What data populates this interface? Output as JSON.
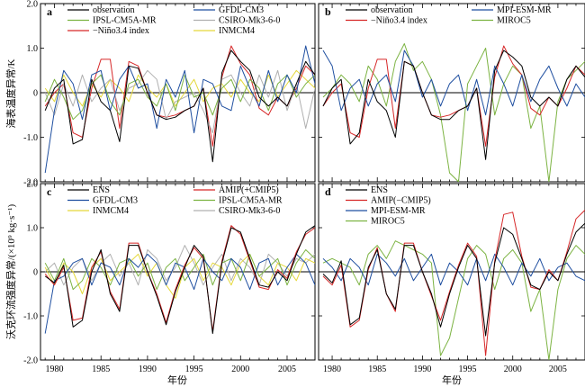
{
  "figure": {
    "ylabel_top": "海表温度异常/K",
    "ylabel_bottom": "沃克环流强度异常/(×10⁹ kg·s⁻¹)",
    "xlabel": "年份"
  },
  "chart_data": [
    {
      "type": "line",
      "panel_label": "a",
      "xlim": [
        1978.5,
        2008
      ],
      "ylim": [
        -2.0,
        2.0
      ],
      "xticks": [
        1980,
        1985,
        1990,
        1995,
        2000,
        2005
      ],
      "yticks": [
        "2.0",
        "1.0",
        "0",
        "-1.0",
        "-2.0"
      ],
      "zero_line": true,
      "legend_columns": 2,
      "x": [
        1979,
        1980,
        1981,
        1982,
        1983,
        1984,
        1985,
        1986,
        1987,
        1988,
        1989,
        1990,
        1991,
        1992,
        1993,
        1994,
        1995,
        1996,
        1997,
        1998,
        1999,
        2000,
        2001,
        2002,
        2003,
        2004,
        2005,
        2006,
        2007,
        2008
      ],
      "series": [
        {
          "name": "observation",
          "color": "#000000",
          "values": [
            -0.4,
            0.1,
            0.3,
            -1.15,
            -1.05,
            0.3,
            -0.2,
            -0.4,
            -1.1,
            0.6,
            0.55,
            0.0,
            -0.5,
            -0.6,
            -0.55,
            -0.4,
            -0.3,
            0.1,
            -1.55,
            0.45,
            0.95,
            0.7,
            0.5,
            -0.1,
            -0.3,
            -0.1,
            -0.3,
            0.2,
            0.7,
            0.4
          ]
        },
        {
          "name": "GFDL-CM3",
          "color": "#1f4fa0",
          "values": [
            -1.8,
            -0.4,
            0.5,
            0.2,
            -0.6,
            0.4,
            0.5,
            -0.4,
            0.3,
            0.6,
            0.1,
            0.2,
            -0.8,
            0.3,
            -0.1,
            0.5,
            -0.9,
            0.3,
            0.2,
            -0.3,
            -0.4,
            0.6,
            0.1,
            -0.3,
            0.5,
            -0.2,
            0.4,
            0.0,
            1.05,
            0.2
          ]
        },
        {
          "name": "IPSL-CM5A-MR",
          "color": "#7cb342",
          "values": [
            -0.2,
            0.3,
            -0.1,
            -0.6,
            -0.4,
            0.2,
            0.4,
            -0.2,
            -0.5,
            0.2,
            0.3,
            -0.1,
            -0.3,
            0.2,
            -0.4,
            0.4,
            -0.1,
            0.0,
            -0.5,
            0.1,
            0.3,
            -0.2,
            0.3,
            0.1,
            -0.4,
            0.2,
            0.4,
            -0.1,
            0.2,
            0.4
          ]
        },
        {
          "name": "CSIRO-Mk3-6-0",
          "color": "#b0b0b0",
          "values": [
            0.0,
            -0.5,
            0.2,
            -0.3,
            0.4,
            -0.2,
            0.1,
            0.3,
            -0.4,
            0.1,
            0.2,
            0.5,
            0.3,
            -0.6,
            -0.2,
            -0.1,
            0.0,
            -0.4,
            -0.9,
            0.3,
            0.4,
            0.0,
            -0.3,
            0.4,
            -0.1,
            0.5,
            -0.4,
            0.2,
            -0.8,
            0.1
          ]
        },
        {
          "name": "−Niño3.4 index",
          "color": "#d62728",
          "values": [
            -0.3,
            0.0,
            0.2,
            -0.9,
            -1.0,
            0.1,
            0.75,
            0.75,
            -0.8,
            0.7,
            0.6,
            0.0,
            -0.5,
            -0.55,
            -0.5,
            -0.4,
            -0.3,
            0.1,
            -1.2,
            0.35,
            1.05,
            0.65,
            0.4,
            -0.35,
            -0.5,
            -0.1,
            -0.3,
            0.1,
            0.6,
            0.4
          ]
        },
        {
          "name": "INMCM4",
          "color": "#e5d83a",
          "values": [
            0.1,
            -0.2,
            0.4,
            0.0,
            -0.3,
            0.2,
            -0.1,
            0.3,
            0.1,
            -0.2,
            0.4,
            0.1,
            -0.1,
            0.2,
            -0.3,
            0.0,
            0.3,
            -0.2,
            0.1,
            0.2,
            -0.1,
            0.3,
            0.0,
            -0.2,
            0.4,
            -0.1,
            0.2,
            0.5,
            0.3,
            0.1
          ]
        }
      ]
    },
    {
      "type": "line",
      "panel_label": "b",
      "xlim": [
        1978.5,
        2008
      ],
      "ylim": [
        -2.0,
        2.0
      ],
      "xticks": [
        1980,
        1985,
        1990,
        1995,
        2000,
        2005
      ],
      "yticks": [
        "2.0",
        "1.0",
        "0",
        "-1.0",
        "-2.0"
      ],
      "zero_line": true,
      "legend_columns": 2,
      "x": [
        1979,
        1980,
        1981,
        1982,
        1983,
        1984,
        1985,
        1986,
        1987,
        1988,
        1989,
        1990,
        1991,
        1992,
        1993,
        1994,
        1995,
        1996,
        1997,
        1998,
        1999,
        2000,
        2001,
        2002,
        2003,
        2004,
        2005,
        2006,
        2007,
        2008
      ],
      "series": [
        {
          "name": "observation",
          "color": "#000000",
          "values": [
            -0.3,
            0.1,
            0.3,
            -1.15,
            -0.9,
            0.3,
            -0.2,
            -0.4,
            -1.0,
            0.7,
            0.6,
            0.0,
            -0.5,
            -0.6,
            -0.6,
            -0.4,
            -0.3,
            0.1,
            -1.5,
            0.5,
            0.95,
            0.8,
            0.6,
            -0.1,
            -0.3,
            -0.1,
            -0.3,
            0.3,
            0.6,
            0.35
          ]
        },
        {
          "name": "MPI-ESM-MR",
          "color": "#1f4fa0",
          "values": [
            0.95,
            0.6,
            -0.4,
            0.1,
            0.3,
            -0.3,
            0.2,
            0.4,
            -0.2,
            0.95,
            0.6,
            -0.1,
            0.3,
            -0.3,
            0.2,
            0.4,
            -0.4,
            0.3,
            -0.5,
            0.6,
            0.2,
            -0.3,
            0.4,
            -0.2,
            0.3,
            0.6,
            0.1,
            -0.3,
            0.2,
            -0.1
          ]
        },
        {
          "name": "−Niño3.4 index",
          "color": "#d62728",
          "values": [
            -0.3,
            0.0,
            0.2,
            -0.9,
            -1.0,
            0.1,
            0.75,
            0.75,
            -0.8,
            0.7,
            0.6,
            0.0,
            -0.5,
            -0.55,
            -0.5,
            -0.4,
            -0.3,
            0.1,
            -1.2,
            0.35,
            1.05,
            0.65,
            0.4,
            -0.35,
            -0.5,
            -0.1,
            -0.3,
            0.1,
            0.6,
            0.4
          ]
        },
        {
          "name": "MIROC5",
          "color": "#7cb342",
          "values": [
            -0.1,
            0.1,
            0.4,
            0.2,
            -0.2,
            0.6,
            0.3,
            -0.3,
            0.7,
            1.1,
            0.5,
            0.7,
            0.3,
            -0.5,
            -1.8,
            -2.0,
            0.2,
            0.6,
            1.0,
            -0.5,
            0.2,
            0.6,
            0.4,
            -0.8,
            -0.3,
            -2.0,
            -0.2,
            0.3,
            0.5,
            0.7
          ]
        }
      ]
    },
    {
      "type": "line",
      "panel_label": "c",
      "xlim": [
        1978.5,
        2008
      ],
      "ylim": [
        -2.0,
        2.0
      ],
      "xticks": [
        1980,
        1985,
        1990,
        1995,
        2000,
        2005
      ],
      "yticks": [
        "2.0",
        "1.0",
        "0",
        "-1.0",
        "-2.0"
      ],
      "zero_line": true,
      "legend_columns": 2,
      "x": [
        1979,
        1980,
        1981,
        1982,
        1983,
        1984,
        1985,
        1986,
        1987,
        1988,
        1989,
        1990,
        1991,
        1992,
        1993,
        1994,
        1995,
        1996,
        1997,
        1998,
        1999,
        2000,
        2001,
        2002,
        2003,
        2004,
        2005,
        2006,
        2007,
        2008
      ],
      "series": [
        {
          "name": "ENS",
          "color": "#000000",
          "values": [
            -0.1,
            -0.25,
            0.15,
            -1.25,
            -1.1,
            0.0,
            0.5,
            -0.5,
            -0.9,
            0.6,
            0.6,
            0.0,
            -0.55,
            -1.2,
            -0.45,
            0.1,
            0.6,
            0.35,
            -1.4,
            0.2,
            1.0,
            0.9,
            0.3,
            -0.3,
            -0.35,
            0.0,
            -0.2,
            0.4,
            0.9,
            1.05
          ]
        },
        {
          "name": "AMIP(+CMIP5)",
          "color": "#d62728",
          "values": [
            -0.05,
            -0.3,
            0.1,
            -1.1,
            -1.05,
            0.1,
            0.45,
            -0.45,
            -0.85,
            0.65,
            0.65,
            0.0,
            -0.5,
            -1.15,
            -0.4,
            0.15,
            0.55,
            0.3,
            -1.35,
            0.25,
            1.05,
            0.85,
            0.25,
            -0.35,
            -0.4,
            0.05,
            -0.15,
            0.45,
            0.85,
            1.0
          ]
        },
        {
          "name": "GFDL-CM3",
          "color": "#1f4fa0",
          "values": [
            -1.4,
            -0.2,
            -0.1,
            0.2,
            0.3,
            -0.3,
            0.2,
            0.1,
            -0.3,
            0.3,
            0.1,
            0.4,
            0.2,
            -0.3,
            0.2,
            0.1,
            -0.4,
            0.3,
            0.0,
            -0.2,
            0.3,
            0.1,
            -0.4,
            0.2,
            0.3,
            -0.3,
            0.1,
            0.4,
            0.2,
            -0.3
          ]
        },
        {
          "name": "IPSL-CM5A-MR",
          "color": "#7cb342",
          "values": [
            0.2,
            -0.2,
            0.3,
            -0.4,
            -0.2,
            0.3,
            0.1,
            -0.3,
            0.2,
            0.3,
            -0.1,
            0.2,
            -0.4,
            0.1,
            0.3,
            -0.2,
            0.1,
            0.4,
            -0.3,
            0.2,
            0.3,
            -0.2,
            0.4,
            -0.1,
            0.1,
            0.3,
            -0.3,
            0.2,
            0.5,
            0.3
          ]
        },
        {
          "name": "INMCM4",
          "color": "#e5d83a",
          "values": [
            0.1,
            -0.3,
            0.2,
            0.0,
            -0.5,
            0.1,
            0.3,
            -0.2,
            0.0,
            0.2,
            0.4,
            -0.1,
            0.2,
            -0.3,
            -0.6,
            0.1,
            0.3,
            -0.2,
            0.2,
            0.1,
            -0.3,
            0.2,
            0.4,
            -0.1,
            -0.3,
            0.2,
            0.1,
            -0.2,
            0.3,
            0.2
          ]
        },
        {
          "name": "CSIRO-Mk3-6-0",
          "color": "#b0b0b0",
          "values": [
            0.0,
            0.2,
            -0.3,
            0.1,
            0.3,
            -0.2,
            0.2,
            0.4,
            -0.1,
            0.2,
            -0.3,
            0.5,
            0.3,
            -0.2,
            0.1,
            0.6,
            0.2,
            -0.3,
            0.1,
            0.4,
            -0.2,
            0.3,
            0.1,
            -0.3,
            0.4,
            0.2,
            -0.1,
            0.3,
            0.2,
            0.4
          ]
        }
      ]
    },
    {
      "type": "line",
      "panel_label": "d",
      "xlim": [
        1978.5,
        2008
      ],
      "ylim": [
        -2.0,
        2.0
      ],
      "xticks": [
        1980,
        1985,
        1990,
        1995,
        2000,
        2005
      ],
      "yticks": [
        "2.0",
        "1.0",
        "0",
        "-1.0",
        "-2.0"
      ],
      "zero_line": true,
      "legend_columns": 1,
      "x": [
        1979,
        1980,
        1981,
        1982,
        1983,
        1984,
        1985,
        1986,
        1987,
        1988,
        1989,
        1990,
        1991,
        1992,
        1993,
        1994,
        1995,
        1996,
        1997,
        1998,
        1999,
        2000,
        2001,
        2002,
        2003,
        2004,
        2005,
        2006,
        2007,
        2008
      ],
      "series": [
        {
          "name": "ENS",
          "color": "#000000",
          "values": [
            -0.05,
            -0.25,
            0.25,
            -1.2,
            -1.05,
            0.1,
            0.5,
            -0.5,
            -0.85,
            0.6,
            0.6,
            0.0,
            -0.5,
            -1.25,
            -0.5,
            0.1,
            0.6,
            0.3,
            -1.45,
            0.2,
            1.0,
            0.85,
            0.3,
            -0.3,
            -0.4,
            0.0,
            -0.2,
            0.4,
            0.9,
            1.1
          ]
        },
        {
          "name": "AMIP(−CMIP5)",
          "color": "#d62728",
          "values": [
            -0.1,
            -0.3,
            0.15,
            -1.25,
            -1.1,
            0.05,
            0.55,
            -0.5,
            -0.9,
            0.65,
            0.65,
            0.0,
            -0.55,
            -1.1,
            -0.45,
            0.15,
            0.65,
            0.35,
            -1.9,
            0.25,
            1.3,
            1.35,
            0.35,
            -0.35,
            -0.4,
            0.05,
            -0.2,
            0.45,
            1.2,
            1.4
          ]
        },
        {
          "name": "MPI-ESM-MR",
          "color": "#1f4fa0",
          "values": [
            0.3,
            0.1,
            -0.2,
            0.3,
            0.1,
            -0.3,
            0.4,
            0.2,
            -0.1,
            0.3,
            -0.2,
            0.1,
            0.4,
            -0.3,
            0.2,
            0.0,
            -0.3,
            0.3,
            -0.2,
            0.4,
            0.1,
            -0.3,
            0.2,
            -0.1,
            0.3,
            -0.2,
            0.1,
            0.2,
            -0.1,
            -0.2
          ]
        },
        {
          "name": "MIROC5",
          "color": "#7cb342",
          "values": [
            0.2,
            0.3,
            0.2,
            0.1,
            -0.3,
            0.4,
            0.6,
            0.3,
            0.7,
            0.6,
            0.5,
            0.4,
            0.2,
            -1.9,
            -1.5,
            -0.6,
            0.3,
            0.6,
            0.4,
            -0.4,
            0.3,
            0.5,
            0.2,
            -0.9,
            -0.4,
            -2.0,
            -0.4,
            0.3,
            0.6,
            0.4
          ]
        }
      ]
    }
  ]
}
